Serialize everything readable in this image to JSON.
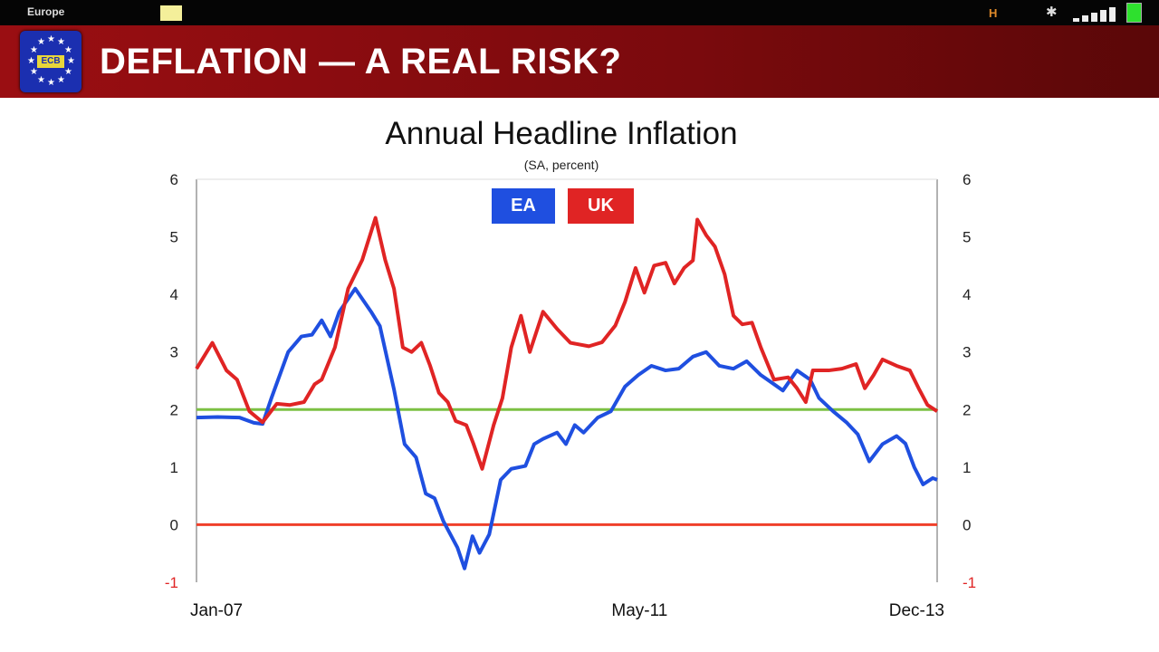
{
  "status_bar": {
    "app_label": "Europe",
    "network_label": "H",
    "icons": [
      "notification-icon",
      "hd-icon",
      "bluetooth-icon",
      "signal-icon",
      "battery-icon"
    ]
  },
  "header": {
    "logo_text": "ECB",
    "title": "DEFLATION — A REAL RISK?"
  },
  "colors": {
    "ea": "#1f4fe0",
    "uk": "#e02424",
    "target_line": "#7cc043",
    "zero_line": "#f0402a"
  },
  "chart_data": {
    "type": "line",
    "title": "Annual Headline Inflation",
    "subtitle": "(SA, percent)",
    "xlabel": "",
    "ylabel": "",
    "x_unit": "months since Jan-07",
    "xlim": [
      0,
      84
    ],
    "ylim": [
      -1,
      6
    ],
    "yticks": [
      -1,
      0,
      1,
      2,
      3,
      4,
      5,
      6
    ],
    "xtick_labels": [
      {
        "x": 0,
        "label": "Jan-07"
      },
      {
        "x": 52,
        "label": "May-11"
      },
      {
        "x": 83,
        "label": "Dec-13"
      }
    ],
    "legend": {
      "placement": "top-center",
      "entries": [
        "EA",
        "UK"
      ]
    },
    "reference_lines": [
      {
        "y": 2,
        "color": "#7cc043"
      },
      {
        "y": 0,
        "color": "#f0402a"
      }
    ],
    "series": [
      {
        "name": "EA",
        "color": "#1f4fe0",
        "points": [
          [
            0,
            1.86
          ],
          [
            2.4,
            1.87
          ],
          [
            4.9,
            1.86
          ],
          [
            6.5,
            1.77
          ],
          [
            7.5,
            1.75
          ],
          [
            8.5,
            2.2
          ],
          [
            10.4,
            3.0
          ],
          [
            11.9,
            3.27
          ],
          [
            13.1,
            3.3
          ],
          [
            14.2,
            3.55
          ],
          [
            15.2,
            3.27
          ],
          [
            16.2,
            3.7
          ],
          [
            18,
            4.1
          ],
          [
            19.8,
            3.7
          ],
          [
            20.8,
            3.45
          ],
          [
            22.4,
            2.35
          ],
          [
            23.6,
            1.4
          ],
          [
            24.9,
            1.17
          ],
          [
            26,
            0.54
          ],
          [
            27,
            0.46
          ],
          [
            28,
            0.06
          ],
          [
            29.6,
            -0.4
          ],
          [
            30.4,
            -0.76
          ],
          [
            31.3,
            -0.2
          ],
          [
            32.1,
            -0.49
          ],
          [
            33.2,
            -0.17
          ],
          [
            34.5,
            0.78
          ],
          [
            35.7,
            0.97
          ],
          [
            37.3,
            1.02
          ],
          [
            38.3,
            1.4
          ],
          [
            39.3,
            1.49
          ],
          [
            40.9,
            1.6
          ],
          [
            41.9,
            1.4
          ],
          [
            42.9,
            1.73
          ],
          [
            43.9,
            1.6
          ],
          [
            45.5,
            1.86
          ],
          [
            47,
            1.97
          ],
          [
            48.6,
            2.4
          ],
          [
            50.1,
            2.6
          ],
          [
            51.6,
            2.76
          ],
          [
            53.2,
            2.68
          ],
          [
            54.7,
            2.71
          ],
          [
            56.3,
            2.92
          ],
          [
            57.8,
            3.0
          ],
          [
            59.3,
            2.76
          ],
          [
            60.9,
            2.71
          ],
          [
            62.4,
            2.84
          ],
          [
            64,
            2.6
          ],
          [
            65.5,
            2.44
          ],
          [
            66.5,
            2.33
          ],
          [
            68.1,
            2.68
          ],
          [
            69.6,
            2.52
          ],
          [
            70.6,
            2.2
          ],
          [
            72.2,
            1.97
          ],
          [
            73.7,
            1.78
          ],
          [
            75,
            1.57
          ],
          [
            76.3,
            1.1
          ],
          [
            77.8,
            1.4
          ],
          [
            79.4,
            1.54
          ],
          [
            80.4,
            1.41
          ],
          [
            81.4,
            1.0
          ],
          [
            82.4,
            0.7
          ],
          [
            83.5,
            0.81
          ],
          [
            84,
            0.78
          ]
        ]
      },
      {
        "name": "UK",
        "color": "#e02424",
        "points": [
          [
            0,
            2.71
          ],
          [
            1.8,
            3.16
          ],
          [
            3.4,
            2.68
          ],
          [
            4.6,
            2.52
          ],
          [
            6,
            1.97
          ],
          [
            7.5,
            1.78
          ],
          [
            9.1,
            2.1
          ],
          [
            10.6,
            2.08
          ],
          [
            12.2,
            2.13
          ],
          [
            13.4,
            2.44
          ],
          [
            14.2,
            2.52
          ],
          [
            15.7,
            3.08
          ],
          [
            17.2,
            4.1
          ],
          [
            18.8,
            4.6
          ],
          [
            20.3,
            5.33
          ],
          [
            21.4,
            4.6
          ],
          [
            22.4,
            4.1
          ],
          [
            23.4,
            3.08
          ],
          [
            24.4,
            3.0
          ],
          [
            25.5,
            3.16
          ],
          [
            26.5,
            2.76
          ],
          [
            27.5,
            2.29
          ],
          [
            28.5,
            2.13
          ],
          [
            29.4,
            1.8
          ],
          [
            30.6,
            1.73
          ],
          [
            31.4,
            1.41
          ],
          [
            32.4,
            0.97
          ],
          [
            33.7,
            1.73
          ],
          [
            34.7,
            2.2
          ],
          [
            35.7,
            3.08
          ],
          [
            36.8,
            3.63
          ],
          [
            37.8,
            3.0
          ],
          [
            39.3,
            3.7
          ],
          [
            40.9,
            3.4
          ],
          [
            42.4,
            3.16
          ],
          [
            44.5,
            3.1
          ],
          [
            46,
            3.17
          ],
          [
            47.5,
            3.46
          ],
          [
            48.6,
            3.87
          ],
          [
            49.8,
            4.46
          ],
          [
            50.8,
            4.03
          ],
          [
            51.9,
            4.5
          ],
          [
            53.2,
            4.55
          ],
          [
            54.2,
            4.19
          ],
          [
            55.3,
            4.46
          ],
          [
            56.3,
            4.59
          ],
          [
            56.8,
            5.3
          ],
          [
            57.8,
            5.03
          ],
          [
            58.8,
            4.83
          ],
          [
            59.9,
            4.35
          ],
          [
            60.9,
            3.63
          ],
          [
            61.9,
            3.48
          ],
          [
            63,
            3.51
          ],
          [
            64,
            3.08
          ],
          [
            65.5,
            2.52
          ],
          [
            67.1,
            2.56
          ],
          [
            68.1,
            2.37
          ],
          [
            69.1,
            2.13
          ],
          [
            69.9,
            2.68
          ],
          [
            71.7,
            2.68
          ],
          [
            73.2,
            2.71
          ],
          [
            74.8,
            2.79
          ],
          [
            75.8,
            2.37
          ],
          [
            76.8,
            2.6
          ],
          [
            77.8,
            2.87
          ],
          [
            79.4,
            2.76
          ],
          [
            80.9,
            2.68
          ],
          [
            81.9,
            2.37
          ],
          [
            82.9,
            2.08
          ],
          [
            84,
            1.97
          ]
        ]
      }
    ]
  }
}
